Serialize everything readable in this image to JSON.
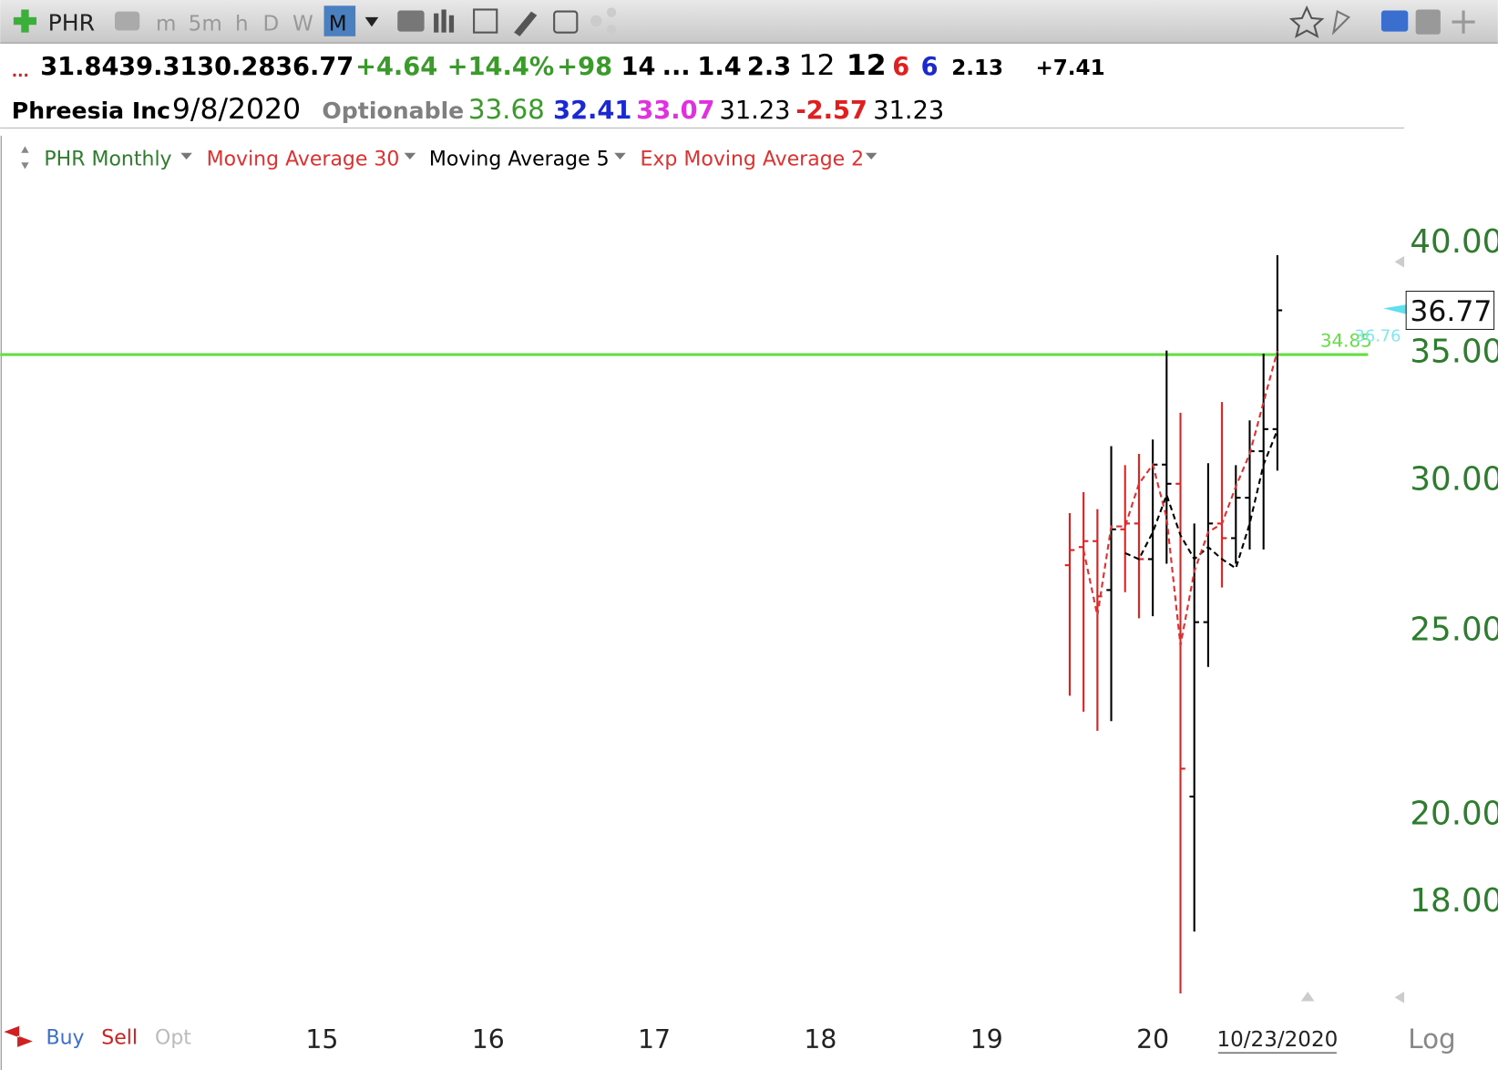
{
  "toolbar": {
    "symbol": "PHR",
    "timeframes": [
      "m",
      "5m",
      "h",
      "D",
      "W",
      "M"
    ],
    "active": 5
  },
  "quote_row1": [
    {
      "text": "...",
      "color": "#d02020"
    },
    {
      "text": "31.84",
      "color": "#000000"
    },
    {
      "text": "39.31",
      "color": "#000000"
    },
    {
      "text": "30.28",
      "color": "#000000"
    },
    {
      "text": "36.77",
      "color": "#000000"
    },
    {
      "text": "+4.64",
      "color": "#3a9a2a"
    },
    {
      "text": "+14.4%",
      "color": "#3a9a2a"
    },
    {
      "text": "+98",
      "color": "#3a9a2a"
    },
    {
      "text": "14",
      "color": "#000000"
    },
    {
      "text": "...",
      "color": "#000000"
    },
    {
      "text": "1.4",
      "color": "#000000"
    },
    {
      "text": "2.3",
      "color": "#000000"
    },
    {
      "text": "12",
      "color": "#000000"
    },
    {
      "text": "12",
      "color": "#000000"
    },
    {
      "text": "6",
      "color": "#e02020"
    },
    {
      "text": "6",
      "color": "#1a2ad0"
    },
    {
      "text": "2.13",
      "color": "#000000"
    },
    {
      "text": "+7.41",
      "color": "#000000"
    }
  ],
  "quote_row2": [
    {
      "text": "Phreesia Inc",
      "color": "#000000"
    },
    {
      "text": "9/8/2020",
      "color": "#000000"
    },
    {
      "text": "Optionable",
      "color": "#808080"
    },
    {
      "text": "33.68",
      "color": "#3a9a2a"
    },
    {
      "text": "32.41",
      "color": "#1a2ad0"
    },
    {
      "text": "33.07",
      "color": "#e030e0"
    },
    {
      "text": "31.23",
      "color": "#000000"
    },
    {
      "text": "-2.57",
      "color": "#e02020"
    },
    {
      "text": "31.23",
      "color": "#000000"
    }
  ],
  "footer": {
    "buy": "Buy",
    "sell": "Sell",
    "opt": "Opt",
    "scale": "Log"
  },
  "chart_data": {
    "type": "ohlc",
    "legend": [
      {
        "text": "PHR Monthly",
        "color": "#2e7d2e"
      },
      {
        "text": "Moving Average 30",
        "color": "#e03030"
      },
      {
        "text": "Moving Average 5",
        "color": "#000000"
      },
      {
        "text": "Exp Moving Average 2",
        "color": "#e03030"
      }
    ],
    "log_scale": true,
    "ylim": [
      15.7,
      43.23
    ],
    "yticks": [
      {
        "value": 40,
        "label": "40.00"
      },
      {
        "value": 35,
        "label": "35.00"
      },
      {
        "value": 30,
        "label": "30.00"
      },
      {
        "value": 25,
        "label": "25.00"
      },
      {
        "value": 20,
        "label": "20.00"
      },
      {
        "value": 18,
        "label": "18.00"
      }
    ],
    "ytick_color": "#2e7d2e",
    "xlim": [
      -23.24,
      75.4
    ],
    "xticks": [
      {
        "value": 0,
        "label": "15"
      },
      {
        "value": 12,
        "label": "16"
      },
      {
        "value": 24,
        "label": "17"
      },
      {
        "value": 36,
        "label": "18"
      },
      {
        "value": 48,
        "label": "19"
      },
      {
        "value": 60,
        "label": "20"
      }
    ],
    "cursor": {
      "x": 69,
      "label": "10/23/2020"
    },
    "x": [
      54,
      55,
      56,
      57,
      58,
      59,
      60,
      61,
      62,
      63,
      64,
      65,
      66,
      67,
      68,
      69
    ],
    "open": [
      27.0,
      27.6,
      27.8,
      26.2,
      28.2,
      28.4,
      27.2,
      30.5,
      29.8,
      20.4,
      25.2,
      28.4,
      27.9,
      29.3,
      31.0,
      31.84
    ],
    "high": [
      28.76,
      29.5,
      28.9,
      31.19,
      30.48,
      30.9,
      31.44,
      35.02,
      32.48,
      28.4,
      30.55,
      32.9,
      30.48,
      32.18,
      34.89,
      39.31
    ],
    "low": [
      23.05,
      22.61,
      22.09,
      22.35,
      26.13,
      25.32,
      25.38,
      27.05,
      16.07,
      17.32,
      23.87,
      26.28,
      27.05,
      27.52,
      27.52,
      30.28
    ],
    "close": [
      27.5,
      27.8,
      26.0,
      28.2,
      28.4,
      27.2,
      30.5,
      29.8,
      21.1,
      25.2,
      28.4,
      27.9,
      29.3,
      31.0,
      31.84,
      36.77
    ],
    "bar_colors": [
      "#dd2222",
      "#dd2222",
      "#dd2222",
      "#000000",
      "#dd2222",
      "#dd2222",
      "#000000",
      "#000000",
      "#dd2222",
      "#000000",
      "#000000",
      "#dd2222",
      "#000000",
      "#000000",
      "#000000",
      "#000000"
    ],
    "series": [
      {
        "color": "#000000",
        "dash": true,
        "values": [
          null,
          null,
          null,
          null,
          27.4,
          27.2,
          28.1,
          29.4,
          28.0,
          27.2,
          27.6,
          27.2,
          26.9,
          28.4,
          30.5,
          31.8
        ]
      },
      {
        "color": "#e03030",
        "dash": true,
        "values": [
          null,
          27.5,
          25.4,
          28.3,
          28.3,
          29.8,
          30.5,
          28.6,
          24.5,
          26.8,
          28.1,
          28.4,
          29.7,
          30.9,
          32.9,
          35.0
        ]
      }
    ],
    "alert_line": {
      "value": 34.85,
      "color": "#66dd44"
    },
    "alert_label": 36.76,
    "last_price": 36.77
  }
}
